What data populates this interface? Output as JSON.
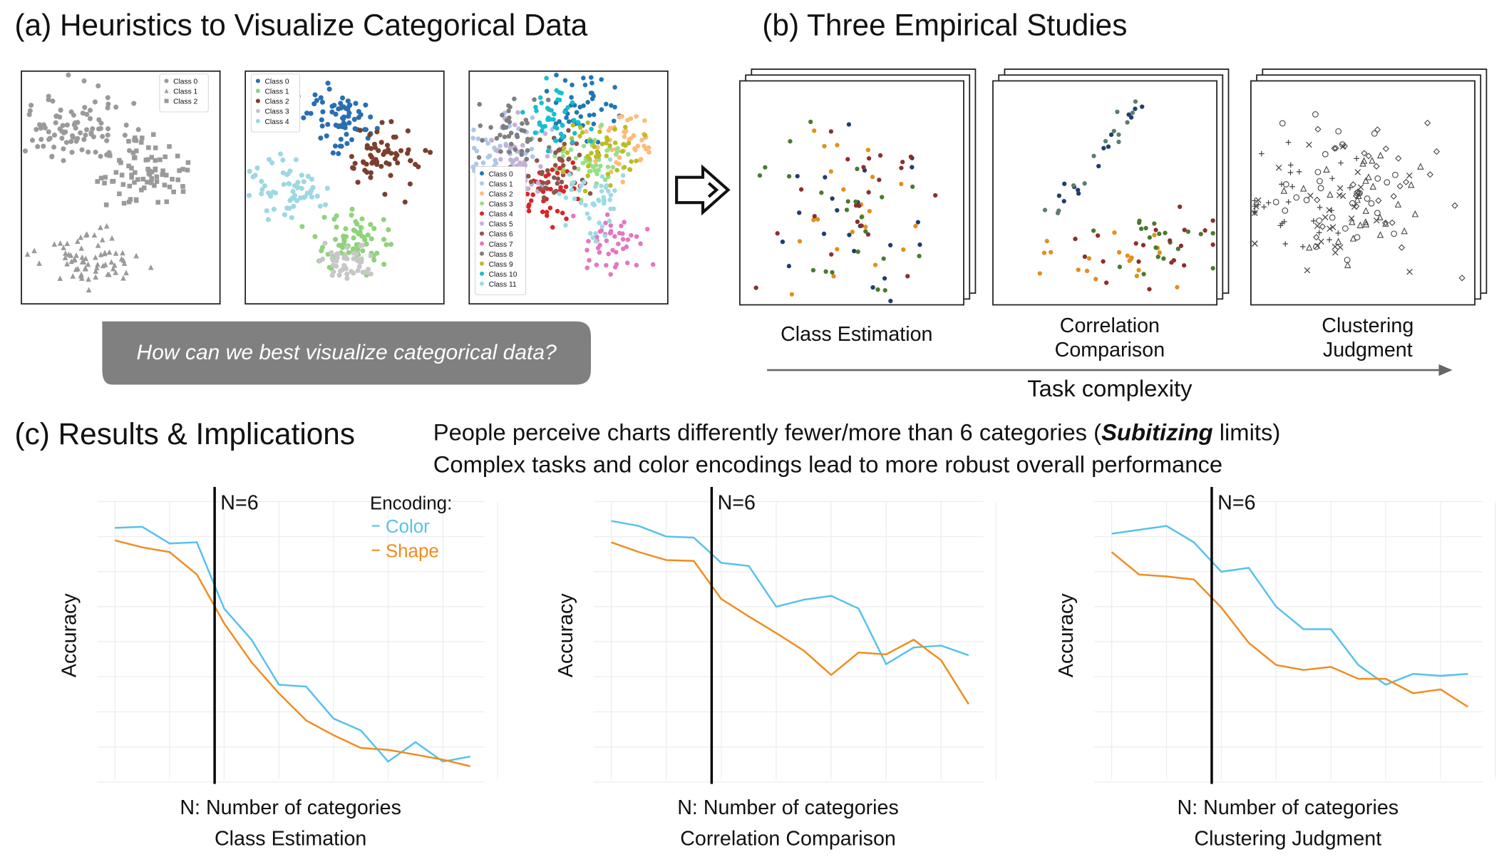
{
  "panel_a": {
    "title": "(a) Heuristics to Visualize Categorical Data",
    "legends": [
      [
        "Class 0",
        "Class 1",
        "Class 2"
      ],
      [
        "Class 0",
        "Class 1",
        "Class 2",
        "Class 3",
        "Class 4"
      ],
      [
        "Class 0",
        "Class 1",
        "Class 2",
        "Class 3",
        "Class 4",
        "Class 5",
        "Class 6",
        "Class 7",
        "Class 8",
        "Class 9",
        "Class 10",
        "Class 11"
      ]
    ],
    "question": "How can we best visualize categorical data?"
  },
  "panel_b": {
    "title": "(b) Three Empirical Studies",
    "studies": [
      [
        "Class Estimation"
      ],
      [
        "Correlation",
        "Comparison"
      ],
      [
        "Clustering",
        "Judgment"
      ]
    ],
    "axis_label": "Task complexity"
  },
  "panel_c": {
    "title": "(c) Results & Implications",
    "finding_1": [
      "People perceive charts differently fewer/more than 6 categories (",
      "Subitizing",
      " limits)"
    ],
    "finding_2": "Complex tasks and color encodings lead to more robust overall performance"
  },
  "chart_data": [
    {
      "type": "line",
      "title": "Class Estimation",
      "x_label": "N: Number of categories",
      "y_label": "Accuracy",
      "annotation": "N=6",
      "legend_title": "Encoding:",
      "categories": [
        null,
        null,
        null,
        null,
        null,
        null,
        null,
        null,
        null,
        null,
        null,
        null,
        null,
        null
      ],
      "ylim": [
        0,
        100
      ],
      "series": [
        {
          "name": "Color",
          "color": "#56c1ec",
          "values": [
            90.5,
            90.9,
            84.9,
            85.3,
            61.4,
            50.2,
            34,
            33.3,
            21.8,
            17.5,
            6.3,
            13.3,
            6.3,
            8.1
          ]
        },
        {
          "name": "Shape",
          "color": "#f08c1e",
          "values": [
            86,
            83.5,
            81.8,
            73.7,
            56.1,
            42.1,
            30.9,
            21.1,
            15.8,
            11.2,
            10.5,
            8.8,
            7,
            4.6
          ]
        }
      ]
    },
    {
      "type": "line",
      "title": "Correlation Comparison",
      "x_label": "N: Number of categories",
      "y_label": "Accuracy",
      "annotation": "N=6",
      "categories": [
        null,
        null,
        null,
        null,
        null,
        null,
        null,
        null,
        null,
        null,
        null,
        null,
        null,
        null
      ],
      "ylim": [
        0,
        100
      ],
      "series": [
        {
          "name": "Color",
          "color": "#56c1ec",
          "values": [
            93,
            91.2,
            87.4,
            87,
            77.9,
            76.8,
            62.1,
            64.6,
            66,
            61.4,
            41.4,
            47.4,
            48.1,
            44.6
          ]
        },
        {
          "name": "Shape",
          "color": "#f08c1e",
          "values": [
            85.3,
            81.8,
            78.9,
            78.6,
            64.9,
            58.6,
            52.6,
            46.3,
            37.5,
            45.6,
            44.9,
            50.2,
            42.8,
            27
          ]
        }
      ]
    },
    {
      "type": "line",
      "title": "Clustering Judgment",
      "x_label": "N: Number of categories",
      "y_label": "Accuracy",
      "annotation": "N=6",
      "categories": [
        null,
        null,
        null,
        null,
        null,
        null,
        null,
        null,
        null,
        null,
        null,
        null,
        null,
        null
      ],
      "ylim": [
        0,
        100
      ],
      "series": [
        {
          "name": "Color",
          "color": "#56c1ec",
          "values": [
            88.4,
            89.8,
            91.2,
            85.3,
            74.7,
            76.1,
            62.1,
            54,
            54,
            41.1,
            34,
            37.9,
            37.2,
            37.9
          ]
        },
        {
          "name": "Shape",
          "color": "#f08c1e",
          "values": [
            81.8,
            73.7,
            73,
            71.9,
            61.8,
            49.1,
            41.1,
            39.3,
            40.4,
            36.1,
            36.1,
            30.9,
            32.3,
            26
          ]
        }
      ]
    }
  ]
}
